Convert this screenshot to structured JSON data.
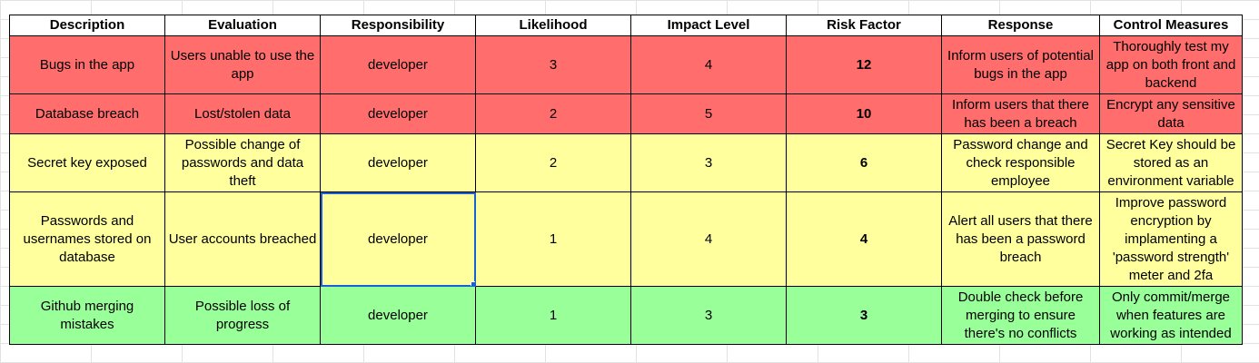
{
  "headers": [
    "Description",
    "Evaluation",
    "Responsibility",
    "Likelihood",
    "Impact Level",
    "Risk Factor",
    "Response",
    "Control Measures"
  ],
  "rows": [
    {
      "severity": "red",
      "description": "Bugs in the app",
      "evaluation": "Users unable to use the app",
      "responsibility": "developer",
      "likelihood": "3",
      "impact": "4",
      "risk": "12",
      "response": "Inform users of potential bugs in the app",
      "control": "Thoroughly test my app on both front and backend"
    },
    {
      "severity": "red",
      "description": "Database breach",
      "evaluation": "Lost/stolen data",
      "responsibility": "developer",
      "likelihood": "2",
      "impact": "5",
      "risk": "10",
      "response": "Inform users that there has been a breach",
      "control": "Encrypt any sensitive data"
    },
    {
      "severity": "yellow",
      "description": "Secret key exposed",
      "evaluation": "Possible change of passwords and data theft",
      "responsibility": "developer",
      "likelihood": "2",
      "impact": "3",
      "risk": "6",
      "response": "Password change and check responsible employee",
      "control": "Secret Key should be stored as an environment variable"
    },
    {
      "severity": "yellow",
      "description": "Passwords and usernames stored on database",
      "evaluation": "User accounts breached",
      "responsibility": "developer",
      "likelihood": "1",
      "impact": "4",
      "risk": "4",
      "response": "Alert all users that there has been a password breach",
      "control": "Improve password encryption by implamenting a 'password strength' meter and 2fa"
    },
    {
      "severity": "green",
      "description": "Github merging mistakes",
      "evaluation": "Possible loss of progress",
      "responsibility": "developer",
      "likelihood": "1",
      "impact": "3",
      "risk": "3",
      "response": "Double check before merging to ensure there's no conflicts",
      "control": "Only commit/merge when features are working as intended"
    }
  ],
  "colors": {
    "red": "#ff6d6d",
    "yellow": "#ffff9d",
    "green": "#99ff99",
    "selection": "#1a5fd6"
  },
  "selected_cell": {
    "row": 3,
    "column": "Responsibility"
  }
}
